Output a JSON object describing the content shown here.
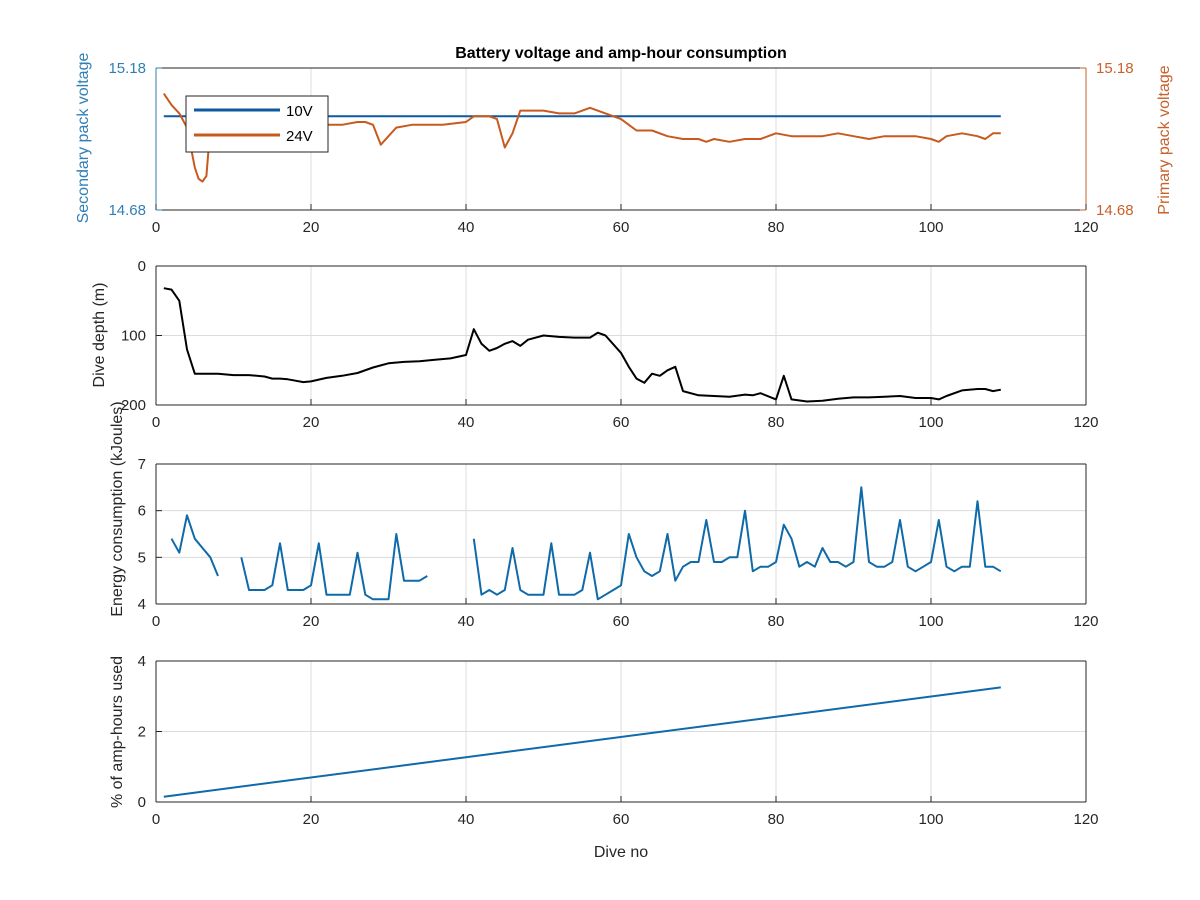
{
  "chart_data": [
    {
      "type": "line",
      "title": "Battery voltage and amp-hour consumption",
      "xlabel": "",
      "ylabel": "Secondary pack voltage",
      "ylabel_right": "Primary pack voltage",
      "xlim": [
        0,
        120
      ],
      "ylim": [
        14.68,
        15.18
      ],
      "ylim_right": [
        14.68,
        15.18
      ],
      "xticks": [
        0,
        20,
        40,
        60,
        80,
        100,
        120
      ],
      "yticks": [
        14.68,
        15.18
      ],
      "yticks_right": [
        14.68,
        15.18
      ],
      "grid": true,
      "legend_position": "top-left",
      "colors": {
        "left_axis": "#2f7fb5",
        "right_axis": "#c8612a"
      },
      "series": [
        {
          "name": "10V",
          "color": "#0e5aa0",
          "axis": "left",
          "x": [
            1,
            109
          ],
          "y": [
            15.01,
            15.01
          ]
        },
        {
          "name": "24V",
          "color": "#c85a1e",
          "axis": "right",
          "x": [
            1,
            2,
            3,
            4,
            5,
            5.5,
            6,
            6.5,
            7,
            8,
            9,
            10,
            12,
            14,
            16,
            18,
            20,
            22,
            24,
            26,
            27,
            28,
            29,
            30,
            31,
            33,
            35,
            37,
            40,
            41,
            42,
            43,
            44,
            45,
            46,
            47,
            48,
            50,
            52,
            54,
            56,
            58,
            60,
            62,
            64,
            66,
            68,
            69,
            70,
            71,
            72,
            74,
            76,
            78,
            80,
            82,
            84,
            86,
            88,
            90,
            92,
            94,
            96,
            98,
            100,
            101,
            102,
            104,
            106,
            107,
            108,
            109
          ],
          "y": [
            15.09,
            15.05,
            15.02,
            14.97,
            14.83,
            14.79,
            14.78,
            14.8,
            14.97,
            14.98,
            14.99,
            14.98,
            14.98,
            14.98,
            14.98,
            14.98,
            14.98,
            14.98,
            14.98,
            14.99,
            14.99,
            14.98,
            14.91,
            14.94,
            14.97,
            14.98,
            14.98,
            14.98,
            14.99,
            15.01,
            15.01,
            15.01,
            15.0,
            14.9,
            14.95,
            15.03,
            15.03,
            15.03,
            15.02,
            15.02,
            15.04,
            15.02,
            15.0,
            14.96,
            14.96,
            14.94,
            14.93,
            14.93,
            14.93,
            14.92,
            14.93,
            14.92,
            14.93,
            14.93,
            14.95,
            14.94,
            14.94,
            14.94,
            14.95,
            14.94,
            14.93,
            14.94,
            14.94,
            14.94,
            14.93,
            14.92,
            14.94,
            14.95,
            14.94,
            14.93,
            14.95,
            14.95
          ]
        }
      ]
    },
    {
      "type": "line",
      "title": "",
      "xlabel": "",
      "ylabel": "Dive depth (m)",
      "xlim": [
        0,
        120
      ],
      "ylim": [
        0,
        200
      ],
      "y_reversed": true,
      "xticks": [
        0,
        20,
        40,
        60,
        80,
        100,
        120
      ],
      "yticks": [
        0,
        100,
        200
      ],
      "grid": true,
      "series": [
        {
          "color": "#000000",
          "x": [
            1,
            2,
            3,
            4,
            5,
            6,
            8,
            10,
            12,
            14,
            15,
            16,
            17,
            18,
            19,
            20,
            22,
            24,
            26,
            28,
            30,
            32,
            34,
            36,
            38,
            40,
            41,
            42,
            43,
            44,
            45,
            46,
            47,
            48,
            50,
            52,
            54,
            56,
            57,
            58,
            60,
            61,
            62,
            63,
            64,
            65,
            66,
            67,
            68,
            70,
            72,
            74,
            76,
            77,
            78,
            80,
            81,
            82,
            84,
            86,
            88,
            90,
            92,
            94,
            96,
            98,
            100,
            101,
            102,
            104,
            106,
            107,
            108,
            109
          ],
          "y": [
            32,
            34,
            50,
            120,
            155,
            155,
            155,
            157,
            157,
            159,
            162,
            162,
            163,
            165,
            167,
            166,
            161,
            158,
            154,
            146,
            140,
            138,
            137,
            135,
            133,
            128,
            91,
            112,
            122,
            118,
            112,
            108,
            115,
            106,
            100,
            102,
            103,
            103,
            96,
            100,
            125,
            145,
            162,
            168,
            155,
            158,
            150,
            145,
            180,
            186,
            187,
            188,
            185,
            186,
            183,
            192,
            158,
            192,
            195,
            194,
            191,
            189,
            189,
            188,
            187,
            190,
            190,
            192,
            187,
            179,
            177,
            177,
            180,
            178
          ]
        }
      ]
    },
    {
      "type": "line",
      "title": "",
      "xlabel": "",
      "ylabel": "Energy consumption (kJoules)",
      "xlim": [
        0,
        120
      ],
      "ylim": [
        4,
        7
      ],
      "xticks": [
        0,
        20,
        40,
        60,
        80,
        100,
        120
      ],
      "yticks": [
        4,
        5,
        6,
        7
      ],
      "grid": true,
      "series": [
        {
          "color": "#0e6aa8",
          "segments": [
            {
              "x": [
                2,
                3,
                4,
                5,
                6,
                7,
                8
              ],
              "y": [
                5.4,
                5.1,
                5.9,
                5.4,
                5.2,
                5.0,
                4.6
              ]
            },
            {
              "x": [
                11,
                12,
                13,
                14,
                15,
                16,
                17,
                18,
                19,
                20,
                21,
                22,
                23,
                24,
                25,
                26,
                27,
                28,
                29,
                30,
                31,
                32,
                33,
                34,
                35
              ],
              "y": [
                5.0,
                4.3,
                4.3,
                4.3,
                4.4,
                5.3,
                4.3,
                4.3,
                4.3,
                4.4,
                5.3,
                4.2,
                4.2,
                4.2,
                4.2,
                5.1,
                4.2,
                4.1,
                4.1,
                4.1,
                5.5,
                4.5,
                4.5,
                4.5,
                4.6
              ]
            },
            {
              "x": [
                41,
                42,
                43,
                44,
                45,
                46,
                47,
                48,
                49,
                50,
                51,
                52,
                53,
                54,
                55,
                56,
                57,
                58,
                59,
                60,
                61,
                62,
                63,
                64,
                65,
                66,
                67,
                68,
                69,
                70,
                71,
                72,
                73,
                74,
                75,
                76,
                77,
                78,
                79,
                80,
                81,
                82,
                83,
                84,
                85,
                86,
                87,
                88,
                89,
                90,
                91,
                92,
                93,
                94,
                95,
                96,
                97,
                98,
                99,
                100,
                101,
                102,
                103,
                104,
                105,
                106,
                107,
                108,
                109
              ],
              "y": [
                5.4,
                4.2,
                4.3,
                4.2,
                4.3,
                5.2,
                4.3,
                4.2,
                4.2,
                4.2,
                5.3,
                4.2,
                4.2,
                4.2,
                4.3,
                5.1,
                4.1,
                4.2,
                4.3,
                4.4,
                5.5,
                5.0,
                4.7,
                4.6,
                4.7,
                5.5,
                4.5,
                4.8,
                4.9,
                4.9,
                5.8,
                4.9,
                4.9,
                5.0,
                5.0,
                6.0,
                4.7,
                4.8,
                4.8,
                4.9,
                5.7,
                5.4,
                4.8,
                4.9,
                4.8,
                5.2,
                4.9,
                4.9,
                4.8,
                4.9,
                6.5,
                4.9,
                4.8,
                4.8,
                4.9,
                5.8,
                4.8,
                4.7,
                4.8,
                4.9,
                5.8,
                4.8,
                4.7,
                4.8,
                4.8,
                6.2,
                4.8,
                4.8,
                4.7
              ]
            }
          ]
        }
      ]
    },
    {
      "type": "line",
      "title": "",
      "xlabel": "Dive no",
      "ylabel": "% of amp-hours used",
      "xlim": [
        0,
        120
      ],
      "ylim": [
        0,
        4
      ],
      "xticks": [
        0,
        20,
        40,
        60,
        80,
        100,
        120
      ],
      "yticks": [
        0,
        2,
        4
      ],
      "grid": true,
      "series": [
        {
          "color": "#0e6aa8",
          "x": [
            1,
            109
          ],
          "y": [
            0.15,
            3.25
          ]
        }
      ]
    }
  ]
}
